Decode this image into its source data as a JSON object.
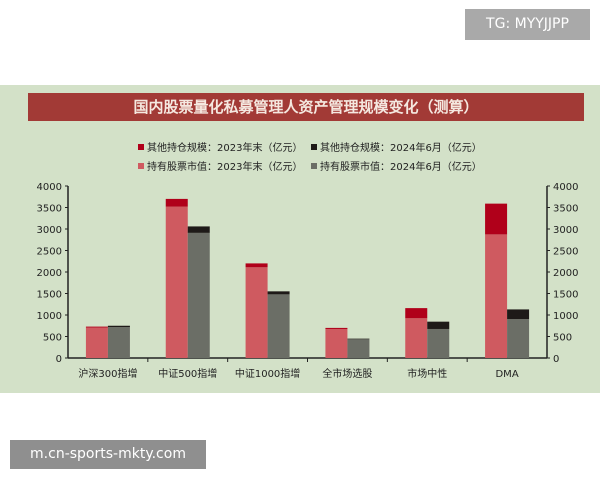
{
  "watermark_top": "TG: MYYJJPP",
  "watermark_bottom": "m.cn-sports-mkty.com",
  "chart_data": {
    "type": "bar",
    "stacked": true,
    "title": "国内股票量化私募管理人资产管理规模变化（测算）",
    "categories": [
      "沪深300指增",
      "中证500指增",
      "中证1000指增",
      "全市场选股",
      "市场中性",
      "DMA"
    ],
    "series": [
      {
        "name": "持有股票市值：2023年末（亿元）",
        "group": "2023",
        "color": "#cf5a60",
        "values": [
          710,
          3520,
          2110,
          675,
          925,
          2875
        ]
      },
      {
        "name": "其他持仓规模：2023年末（亿元）",
        "group": "2023",
        "color": "#b0001a",
        "values": [
          20,
          180,
          90,
          25,
          235,
          715
        ]
      },
      {
        "name": "持有股票市值：2024年6月（亿元）",
        "group": "2024",
        "color": "#6b6e66",
        "values": [
          720,
          2910,
          1480,
          435,
          675,
          905
        ]
      },
      {
        "name": "其他持仓规模：2024年6月（亿元）",
        "group": "2024",
        "color": "#1e1a18",
        "values": [
          30,
          150,
          70,
          15,
          170,
          225
        ]
      }
    ],
    "ylim": [
      0,
      4000
    ],
    "yticks": [
      0,
      500,
      1000,
      1500,
      2000,
      2500,
      3000,
      3500,
      4000
    ],
    "legend": "top",
    "grid": false
  }
}
